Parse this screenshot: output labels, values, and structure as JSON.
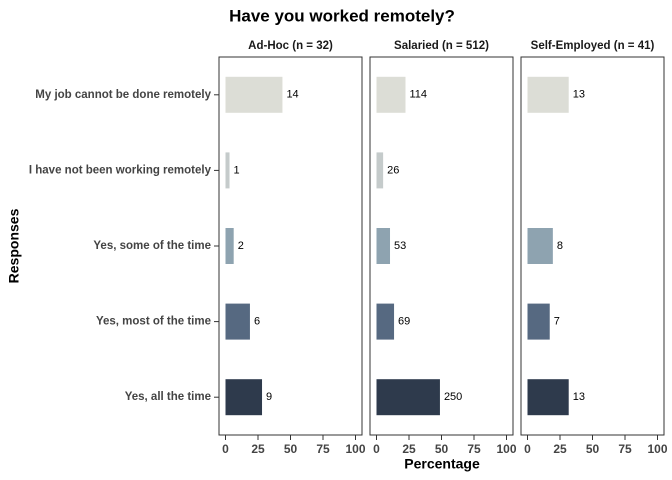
{
  "chart_data": {
    "type": "bar",
    "title": "Have you worked remotely?",
    "x_label": "Percentage",
    "y_label": "Responses",
    "categories": [
      "My job cannot be done remotely",
      "I have not been working remotely",
      "Yes, some of the time",
      "Yes, most of the time",
      "Yes, all the time"
    ],
    "colors": [
      "#dcddd6",
      "#c5cbcb",
      "#8ea3b0",
      "#566981",
      "#2e3a4c"
    ],
    "xlim": [
      -5,
      105
    ],
    "xticks": [
      0,
      25,
      50,
      75,
      100
    ],
    "facets": [
      {
        "title": "Ad-Hoc (n = 32)",
        "values": [
          43.8,
          3.1,
          6.3,
          18.8,
          28.1
        ],
        "counts": [
          14,
          1,
          2,
          6,
          9
        ]
      },
      {
        "title": "Salaried (n = 512)",
        "values": [
          22.3,
          5.1,
          10.4,
          13.5,
          48.8
        ],
        "counts": [
          114,
          26,
          53,
          69,
          250
        ]
      },
      {
        "title": "Self-Employed (n = 41)",
        "values": [
          31.7,
          null,
          19.5,
          17.1,
          31.7
        ],
        "counts": [
          13,
          null,
          8,
          7,
          13
        ]
      }
    ]
  }
}
